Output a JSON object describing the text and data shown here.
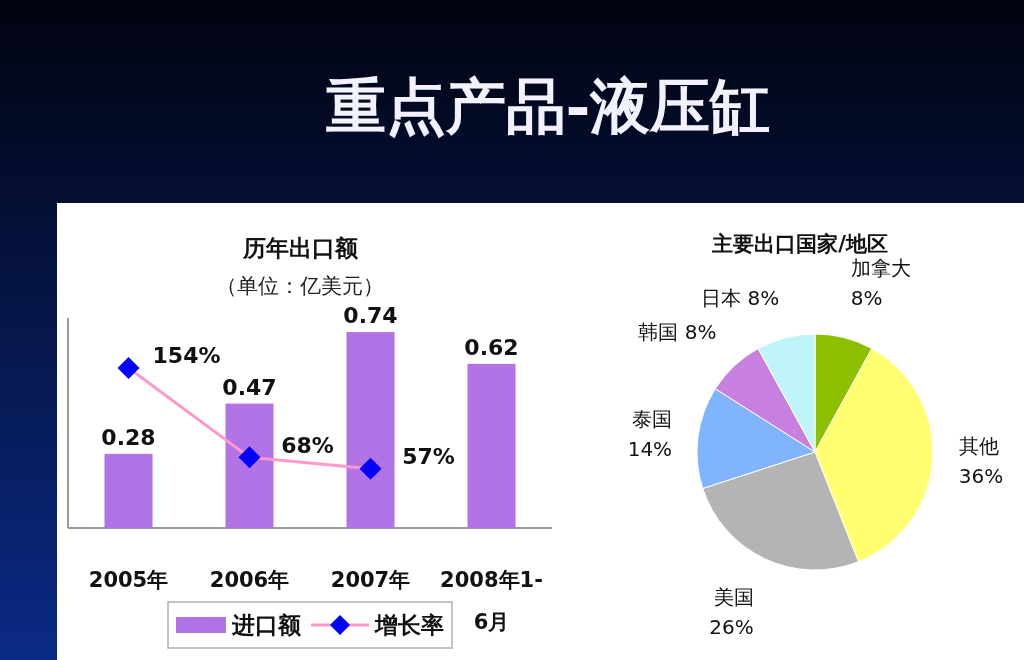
{
  "chart_data": [
    {
      "type": "other",
      "title": "重点产品-液压缸"
    },
    {
      "type": "bar",
      "title": "历年出口额",
      "subtitle": "（单位：亿美元）",
      "categories": [
        "2005年",
        "2006年",
        "2007年",
        "2008年1-6月"
      ],
      "series": [
        {
          "name": "进口额",
          "type": "bar",
          "color": "#b273e6",
          "values": [
            0.28,
            0.47,
            0.74,
            0.62
          ],
          "value_labels": [
            "0.28",
            "0.47",
            "0.74",
            "0.62"
          ]
        },
        {
          "name": "增长率",
          "type": "line",
          "axis": "y2",
          "color": "#ff99cc",
          "colors": [
            "#0000ff",
            "#0000ff",
            "#0000ff",
            null
          ],
          "values": [
            154,
            68,
            57,
            null
          ],
          "value_labels": [
            "154%",
            "68%",
            "57%",
            null
          ]
        }
      ],
      "marker": "diamond",
      "legend": "bottom"
    },
    {
      "type": "pie",
      "title": "主要出口国家/地区",
      "categories": [
        "加拿大",
        "其他",
        "美国",
        "泰国",
        "韩国",
        "日本"
      ],
      "values": [
        8,
        36,
        26,
        14,
        8,
        8
      ],
      "colors": [
        "#8cc000",
        "#ffff70",
        "#b4b4b4",
        "#80b4ff",
        "#c880e0",
        "#bff5f8"
      ],
      "value_labels": [
        "8%",
        "36%",
        "26%",
        "14%",
        "8%",
        "8%"
      ]
    }
  ]
}
